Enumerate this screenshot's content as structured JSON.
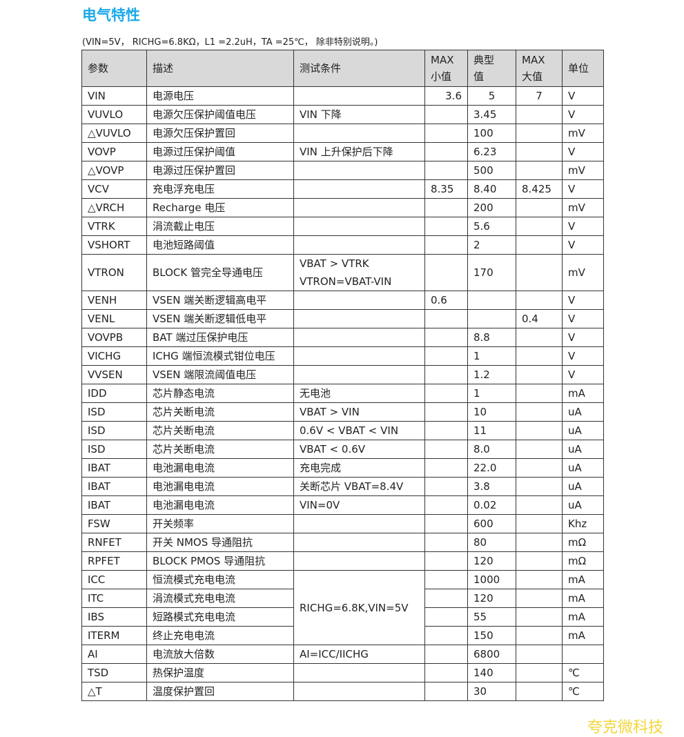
{
  "title": "电气特性",
  "conditions": "(VIN=5V，  RICHG=6.8KΩ，L1 =2.2uH，TA =25℃， 除非特别说明。)",
  "headers": [
    "参数",
    "描述",
    "测试条件",
    "MAX\n小值",
    "典型\n值",
    "MAX\n大值",
    "单位"
  ],
  "rows": [
    [
      "VIN",
      "电源电压",
      "",
      "3.6",
      "5",
      "7",
      "V"
    ],
    [
      "VUVLO",
      "电源欠压保护阈值电压",
      "VIN 下降",
      "",
      "3.45",
      "",
      "V"
    ],
    [
      "△VUVLO",
      "电源欠压保护置回",
      "",
      "",
      "100",
      "",
      "mV"
    ],
    [
      "VOVP",
      "电源过压保护阈值",
      "VIN 上升保护后下降",
      "",
      "6.23",
      "",
      "V"
    ],
    [
      "△VOVP",
      "电源过压保护置回",
      "",
      "",
      "500",
      "",
      "mV"
    ],
    [
      "VCV",
      "充电浮充电压",
      "",
      "8.35",
      "8.40",
      "8.425",
      "V"
    ],
    [
      "△VRCH",
      "Recharge  电压",
      "",
      "",
      "200",
      "",
      "mV"
    ],
    [
      "VTRK",
      "涓流截止电压",
      "",
      "",
      "5.6",
      "",
      "V"
    ],
    [
      "VSHORT",
      "电池短路阈值",
      "",
      "",
      "2",
      "",
      "V"
    ],
    [
      "VTRON",
      "BLOCK 管完全导通电压",
      "VBAT > VTRK\nVTRON=VBAT-VIN",
      "",
      "170",
      "",
      "mV"
    ],
    [
      "VENH",
      "VSEN 端关断逻辑高电平",
      "",
      "0.6",
      "",
      "",
      "V"
    ],
    [
      "VENL",
      "VSEN 端关断逻辑低电平",
      "",
      "",
      "",
      "0.4",
      "V"
    ],
    [
      "VOVPB",
      "BAT  端过压保护电压",
      "",
      "",
      "8.8",
      "",
      "V"
    ],
    [
      "VICHG",
      "ICHG 端恒流模式钳位电压",
      "",
      "",
      "1",
      "",
      "V"
    ],
    [
      "VVSEN",
      "VSEN 端限流阈值电压",
      "",
      "",
      "1.2",
      "",
      "V"
    ],
    [
      "IDD",
      "芯片静态电流",
      "无电池",
      "",
      "1",
      "",
      "mA"
    ],
    [
      "ISD",
      "芯片关断电流",
      "VBAT > VIN",
      "",
      "10",
      "",
      "uA"
    ],
    [
      "ISD",
      "芯片关断电流",
      "0.6V < VBAT < VIN",
      "",
      "11",
      "",
      "uA"
    ],
    [
      "ISD",
      "芯片关断电流",
      "VBAT < 0.6V",
      "",
      "8.0",
      "",
      "uA"
    ],
    [
      "IBAT",
      "电池漏电电流",
      "充电完成",
      "",
      "22.0",
      "",
      "uA"
    ],
    [
      "IBAT",
      "电池漏电电流",
      "关断芯片  VBAT=8.4V",
      "",
      "3.8",
      "",
      "uA"
    ],
    [
      "IBAT",
      "电池漏电电流",
      "VIN=0V",
      "",
      "0.02",
      "",
      "uA"
    ],
    [
      "FSW",
      "开关频率",
      "",
      "",
      "600",
      "",
      "Khz"
    ],
    [
      "RNFET",
      "开关  NMOS  导通阻抗",
      "",
      "",
      "80",
      "",
      "mΩ"
    ],
    [
      "RPFET",
      "BLOCK PMOS  导通阻抗",
      "",
      "",
      "120",
      "",
      "mΩ"
    ],
    [
      "ICC",
      "恒流模式充电电流",
      "RICHG=6.8K,VIN=5V",
      "",
      "1000",
      "",
      "mA"
    ],
    [
      "ITC",
      "涓流模式充电电流",
      "",
      "",
      "120",
      "",
      "mA"
    ],
    [
      "IBS",
      "短路模式充电电流",
      "",
      "",
      "55",
      "",
      "mA"
    ],
    [
      "ITERM",
      "终止充电电流",
      "",
      "",
      "150",
      "",
      "mA"
    ],
    [
      "AI",
      "电流放大倍数",
      "AI=ICC/IICHG",
      "",
      "6800",
      "",
      ""
    ],
    [
      "TSD",
      "热保护温度",
      "",
      "",
      "140",
      "",
      "℃"
    ],
    [
      "△T",
      "温度保护置回",
      "",
      "",
      "30",
      "",
      "℃"
    ]
  ],
  "watermark": "夸克微科技"
}
